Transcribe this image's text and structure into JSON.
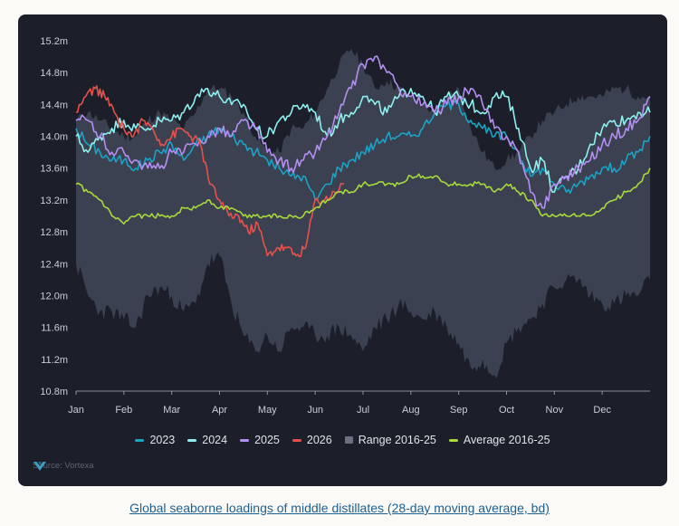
{
  "chart_data": {
    "type": "line",
    "title": "",
    "xlabel": "",
    "ylabel": "",
    "ylim": [
      10.8,
      15.2
    ],
    "yticks": [
      10.8,
      11.2,
      11.6,
      12.0,
      12.4,
      12.8,
      13.2,
      13.6,
      14.0,
      14.4,
      14.8,
      15.2
    ],
    "ytick_labels": [
      "10.8m",
      "11.2m",
      "11.6m",
      "12.0m",
      "12.4m",
      "12.8m",
      "13.2m",
      "13.6m",
      "14.0m",
      "14.4m",
      "14.8m",
      "15.2m"
    ],
    "months": [
      "Jan",
      "Feb",
      "Mar",
      "Apr",
      "May",
      "Jun",
      "Jul",
      "Aug",
      "Sep",
      "Oct",
      "Nov",
      "Dec"
    ],
    "grid": false,
    "legend_position": "bottom",
    "range": {
      "name": "Range 2016-25",
      "color": "#3b4150",
      "x": [
        0,
        0.25,
        0.5,
        0.75,
        1,
        1.25,
        1.5,
        1.75,
        2,
        2.25,
        2.5,
        2.75,
        3,
        3.25,
        3.5,
        3.75,
        4,
        4.25,
        4.5,
        4.75,
        5,
        5.25,
        5.5,
        5.75,
        6,
        6.25,
        6.5,
        6.75,
        7,
        7.25,
        7.5,
        7.75,
        8,
        8.25,
        8.5,
        8.75,
        9,
        9.25,
        9.5,
        9.75,
        10,
        10.25,
        10.5,
        10.75,
        11,
        11.25,
        11.5,
        11.75,
        12
      ],
      "upper": [
        14.2,
        14.3,
        14.2,
        14.1,
        14.0,
        14.0,
        14.2,
        14.3,
        14.2,
        14.1,
        14.3,
        14.6,
        14.6,
        14.5,
        14.3,
        14.0,
        13.8,
        13.8,
        14.1,
        14.1,
        14.3,
        14.6,
        14.9,
        15.1,
        14.9,
        14.6,
        14.7,
        14.6,
        14.5,
        14.4,
        14.3,
        14.5,
        14.6,
        14.1,
        13.8,
        13.6,
        13.7,
        13.8,
        14.0,
        14.2,
        14.3,
        14.4,
        14.5,
        14.5,
        14.5,
        14.6,
        14.6,
        14.5,
        14.5
      ],
      "lower": [
        12.4,
        12.0,
        11.8,
        11.8,
        11.7,
        11.6,
        12.0,
        12.1,
        12.0,
        11.8,
        11.9,
        12.4,
        12.5,
        11.9,
        11.5,
        11.3,
        11.5,
        11.3,
        11.6,
        11.6,
        11.5,
        11.5,
        11.6,
        11.5,
        11.3,
        11.6,
        11.7,
        11.9,
        11.8,
        11.7,
        11.8,
        11.6,
        11.4,
        11.1,
        11.2,
        11.0,
        11.4,
        11.6,
        11.7,
        11.9,
        12.1,
        12.2,
        12.2,
        12.0,
        11.9,
        11.9,
        12.0,
        12.0,
        12.2
      ]
    },
    "series": [
      {
        "name": "2023",
        "color": "#1ba3c6",
        "x": [
          0,
          0.25,
          0.5,
          0.75,
          1,
          1.25,
          1.5,
          1.75,
          2,
          2.25,
          2.5,
          2.75,
          3,
          3.25,
          3.5,
          3.75,
          4,
          4.25,
          4.5,
          4.75,
          5,
          5.25,
          5.5,
          5.75,
          6,
          6.25,
          6.5,
          6.75,
          7,
          7.25,
          7.5,
          7.75,
          8,
          8.25,
          8.5,
          8.75,
          9,
          9.25,
          9.5,
          9.75,
          10,
          10.25,
          10.5,
          10.75,
          11,
          11.25,
          11.5,
          11.75,
          12
        ],
        "values": [
          14.1,
          13.9,
          13.8,
          13.7,
          13.7,
          13.6,
          13.7,
          13.8,
          13.9,
          13.7,
          13.9,
          14.0,
          14.1,
          14.0,
          13.9,
          13.8,
          13.7,
          13.6,
          13.5,
          13.5,
          13.2,
          13.4,
          13.6,
          13.7,
          13.8,
          13.9,
          14.0,
          14.0,
          14.0,
          14.1,
          14.3,
          14.4,
          14.4,
          14.2,
          14.1,
          14.0,
          14.0,
          13.8,
          13.5,
          13.6,
          13.4,
          13.3,
          13.4,
          13.5,
          13.6,
          13.6,
          13.7,
          13.8,
          14.0
        ]
      },
      {
        "name": "2024",
        "color": "#8ef0ee",
        "x": [
          0,
          0.25,
          0.5,
          0.75,
          1,
          1.25,
          1.5,
          1.75,
          2,
          2.25,
          2.5,
          2.75,
          3,
          3.25,
          3.5,
          3.75,
          4,
          4.25,
          4.5,
          4.75,
          5,
          5.25,
          5.5,
          5.75,
          6,
          6.25,
          6.5,
          6.75,
          7,
          7.25,
          7.5,
          7.75,
          8,
          8.25,
          8.5,
          8.75,
          9,
          9.25,
          9.5,
          9.75,
          10,
          10.25,
          10.5,
          10.75,
          11,
          11.25,
          11.5,
          11.75,
          12
        ],
        "values": [
          14.0,
          13.8,
          14.0,
          14.1,
          14.2,
          14.1,
          14.1,
          14.2,
          14.2,
          14.3,
          14.5,
          14.6,
          14.5,
          14.4,
          14.4,
          14.1,
          14.0,
          14.2,
          14.3,
          14.4,
          14.3,
          14.0,
          14.2,
          14.3,
          14.5,
          14.4,
          14.3,
          14.5,
          14.6,
          14.5,
          14.3,
          14.5,
          14.5,
          14.4,
          14.3,
          14.5,
          14.5,
          14.1,
          13.6,
          13.7,
          13.3,
          13.5,
          13.6,
          13.9,
          14.1,
          14.2,
          14.2,
          14.3,
          14.3
        ]
      },
      {
        "name": "2025",
        "color": "#b48ef3",
        "x": [
          0,
          0.25,
          0.5,
          0.75,
          1,
          1.25,
          1.5,
          1.75,
          2,
          2.25,
          2.5,
          2.75,
          3,
          3.25,
          3.5,
          3.75,
          4,
          4.25,
          4.5,
          4.75,
          5,
          5.25,
          5.5,
          5.75,
          6,
          6.25,
          6.5,
          6.75,
          7,
          7.25,
          7.5,
          7.75,
          8,
          8.25,
          8.5,
          8.75,
          9,
          9.25,
          9.5,
          9.75,
          10,
          10.25,
          10.5,
          10.75,
          11,
          11.25,
          11.5,
          11.75,
          12
        ],
        "values": [
          14.2,
          14.2,
          14.0,
          13.8,
          13.8,
          13.7,
          13.6,
          13.6,
          13.8,
          13.8,
          13.9,
          14.0,
          14.1,
          14.0,
          14.2,
          14.1,
          13.8,
          13.7,
          13.6,
          13.7,
          13.8,
          14.0,
          14.3,
          14.6,
          14.9,
          15.0,
          14.8,
          14.6,
          14.5,
          14.4,
          14.3,
          14.4,
          14.5,
          14.6,
          14.4,
          14.1,
          14.0,
          13.8,
          13.3,
          13.1,
          13.4,
          13.5,
          13.6,
          13.7,
          13.9,
          14.0,
          14.1,
          14.2,
          14.5
        ]
      },
      {
        "name": "2026",
        "color": "#e6524b",
        "x": [
          0,
          0.2,
          0.4,
          0.6,
          0.8,
          1.0,
          1.2,
          1.4,
          1.6,
          1.8,
          2.0,
          2.2,
          2.4,
          2.6,
          2.8,
          3.0,
          3.2,
          3.4,
          3.6,
          3.8,
          4.0,
          4.2,
          4.4,
          4.6,
          4.8,
          5.0,
          5.2,
          5.4,
          5.6
        ],
        "values": [
          14.3,
          14.5,
          14.6,
          14.5,
          14.3,
          14.1,
          14.0,
          14.2,
          14.1,
          13.9,
          14.0,
          14.1,
          14.0,
          13.9,
          13.4,
          13.2,
          13.0,
          13.0,
          12.8,
          12.9,
          12.5,
          12.6,
          12.6,
          12.5,
          12.6,
          13.2,
          13.2,
          13.3,
          13.4
        ]
      },
      {
        "name": "Average 2016-25",
        "color": "#a8d93c",
        "x": [
          0,
          0.25,
          0.5,
          0.75,
          1,
          1.25,
          1.5,
          1.75,
          2,
          2.25,
          2.5,
          2.75,
          3,
          3.25,
          3.5,
          3.75,
          4,
          4.25,
          4.5,
          4.75,
          5,
          5.25,
          5.5,
          5.75,
          6,
          6.25,
          6.5,
          6.75,
          7,
          7.25,
          7.5,
          7.75,
          8,
          8.25,
          8.5,
          8.75,
          9,
          9.25,
          9.5,
          9.75,
          10,
          10.25,
          10.5,
          10.75,
          11,
          11.25,
          11.5,
          11.75,
          12
        ],
        "values": [
          13.4,
          13.3,
          13.2,
          13.0,
          12.9,
          13.0,
          13.0,
          13.0,
          13.0,
          13.1,
          13.1,
          13.2,
          13.1,
          13.1,
          13.0,
          13.0,
          13.0,
          13.0,
          13.0,
          13.0,
          13.1,
          13.2,
          13.3,
          13.3,
          13.4,
          13.4,
          13.4,
          13.4,
          13.5,
          13.5,
          13.5,
          13.4,
          13.4,
          13.4,
          13.4,
          13.3,
          13.4,
          13.3,
          13.2,
          13.0,
          13.0,
          13.0,
          13.0,
          13.0,
          13.1,
          13.2,
          13.3,
          13.4,
          13.6
        ]
      }
    ],
    "legend": [
      {
        "label": "2023",
        "color": "#1ba3c6",
        "kind": "line"
      },
      {
        "label": "2024",
        "color": "#8ef0ee",
        "kind": "line"
      },
      {
        "label": "2025",
        "color": "#b48ef3",
        "kind": "line"
      },
      {
        "label": "2026",
        "color": "#e6524b",
        "kind": "line"
      },
      {
        "label": "Range 2016-25",
        "color": "#6a7082",
        "kind": "box"
      },
      {
        "label": "Average 2016-25",
        "color": "#a8d93c",
        "kind": "line"
      }
    ]
  },
  "source": "Source: Vortexa",
  "caption": "Global seaborne loadings of middle distillates (28-day moving average, bd)"
}
